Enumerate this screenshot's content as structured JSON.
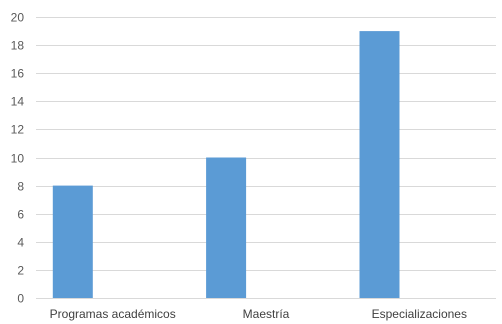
{
  "chart_data": {
    "type": "bar",
    "categories": [
      "Programas académicos",
      "Maestría",
      "Especializaciones"
    ],
    "values": [
      8,
      10,
      19
    ],
    "title": "",
    "xlabel": "",
    "ylabel": "",
    "ylim": [
      0,
      20
    ],
    "yticks": [
      0,
      2,
      4,
      6,
      8,
      10,
      12,
      14,
      16,
      18,
      20
    ],
    "grid": true,
    "legend": "none",
    "bar_color": "#5b9bd5"
  }
}
